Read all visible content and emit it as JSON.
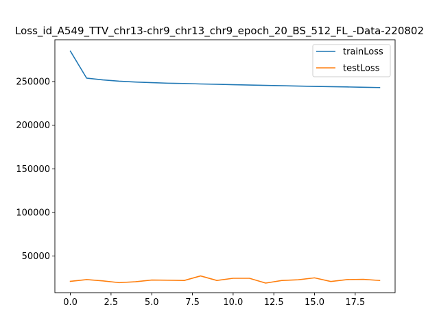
{
  "chart_data": {
    "type": "line",
    "title": "Loss_id_A549_TTV_chr13-chr9_chr13_chr9_epoch_20_BS_512_FL_-Data-220802",
    "xlabel": "",
    "ylabel": "",
    "x": [
      0,
      1,
      2,
      3,
      4,
      5,
      6,
      7,
      8,
      9,
      10,
      11,
      12,
      13,
      14,
      15,
      16,
      17,
      18,
      19
    ],
    "xlim": [
      -0.95,
      19.95
    ],
    "ylim": [
      8000,
      298000
    ],
    "xticks": [
      0.0,
      2.5,
      5.0,
      7.5,
      10.0,
      12.5,
      15.0,
      17.5
    ],
    "xtick_labels": [
      "0.0",
      "2.5",
      "5.0",
      "7.5",
      "10.0",
      "12.5",
      "15.0",
      "17.5"
    ],
    "yticks": [
      50000,
      100000,
      150000,
      200000,
      250000
    ],
    "ytick_labels": [
      "50000",
      "100000",
      "150000",
      "200000",
      "250000"
    ],
    "grid": false,
    "legend_position": "top-right",
    "series": [
      {
        "name": "trainLoss",
        "color": "#1f77b4",
        "values": [
          285000,
          254000,
          252000,
          250500,
          249500,
          248800,
          248200,
          247900,
          247300,
          247000,
          246500,
          246100,
          245700,
          245300,
          244900,
          244500,
          244200,
          243900,
          243500,
          243200
        ]
      },
      {
        "name": "testLoss",
        "color": "#ff7f0e",
        "values": [
          21000,
          23000,
          21500,
          19500,
          20500,
          22500,
          22300,
          22000,
          27200,
          22000,
          24500,
          24500,
          19000,
          22000,
          22800,
          25000,
          20800,
          23000,
          23300,
          22000
        ]
      }
    ]
  }
}
